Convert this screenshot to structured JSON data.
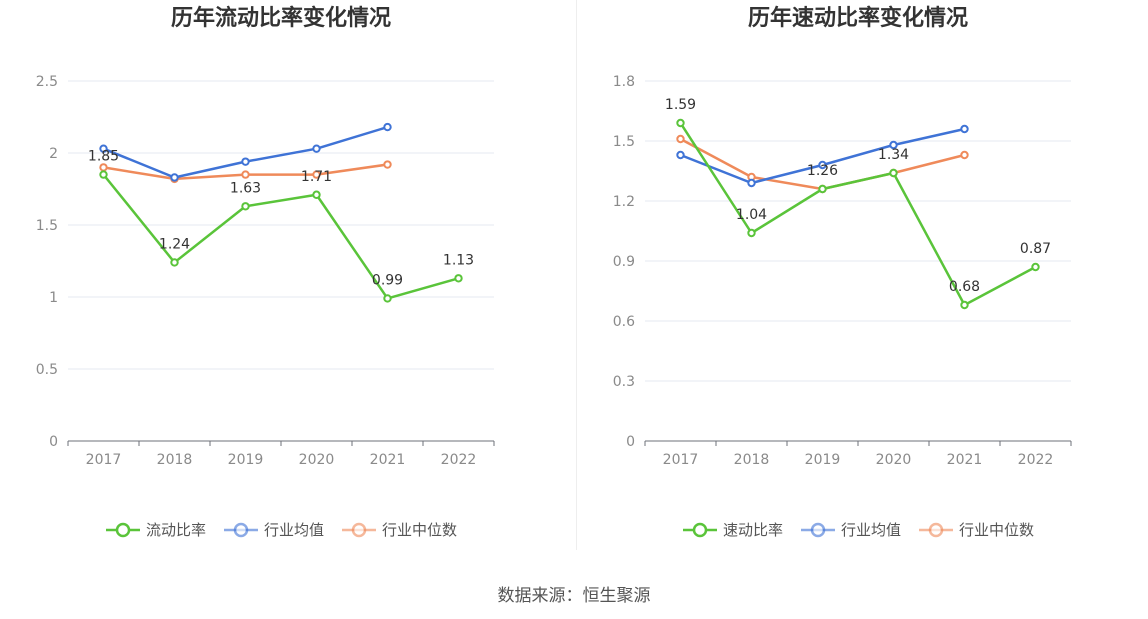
{
  "chart_data": [
    {
      "type": "line",
      "title": "历年流动比率变化情况",
      "categories": [
        "2017",
        "2018",
        "2019",
        "2020",
        "2021",
        "2022"
      ],
      "ylim": [
        0,
        2.5
      ],
      "yticks": [
        0,
        0.5,
        1,
        1.5,
        2,
        2.5
      ],
      "ytick_labels": [
        "0",
        "0.5",
        "1",
        "1.5",
        "2",
        "2.5"
      ],
      "grid": true,
      "legend_position": "bottom",
      "series": [
        {
          "name": "流动比率",
          "color": "#5ac43a",
          "values": [
            1.85,
            1.24,
            1.63,
            1.71,
            0.99,
            1.13
          ],
          "labels": [
            "1.85",
            "1.24",
            "1.63",
            "1.71",
            "0.99",
            "1.13"
          ]
        },
        {
          "name": "行业均值",
          "color": "#3f73d6",
          "values": [
            2.03,
            1.83,
            1.94,
            2.03,
            2.18,
            null
          ]
        },
        {
          "name": "行业中位数",
          "color": "#ef8a5a",
          "values": [
            1.9,
            1.82,
            1.85,
            1.85,
            1.92,
            null
          ]
        }
      ]
    },
    {
      "type": "line",
      "title": "历年速动比率变化情况",
      "categories": [
        "2017",
        "2018",
        "2019",
        "2020",
        "2021",
        "2022"
      ],
      "ylim": [
        0,
        1.8
      ],
      "yticks": [
        0,
        0.3,
        0.6,
        0.9,
        1.2,
        1.5,
        1.8
      ],
      "ytick_labels": [
        "0",
        "0.3",
        "0.6",
        "0.9",
        "1.2",
        "1.5",
        "1.8"
      ],
      "grid": true,
      "legend_position": "bottom",
      "series": [
        {
          "name": "速动比率",
          "color": "#5ac43a",
          "values": [
            1.59,
            1.04,
            1.26,
            1.34,
            0.68,
            0.87
          ],
          "labels": [
            "1.59",
            "1.04",
            "1.26",
            "1.34",
            "0.68",
            "0.87"
          ]
        },
        {
          "name": "行业均值",
          "color": "#3f73d6",
          "values": [
            1.43,
            1.29,
            1.38,
            1.48,
            1.56,
            null
          ]
        },
        {
          "name": "行业中位数",
          "color": "#ef8a5a",
          "values": [
            1.51,
            1.32,
            1.26,
            1.34,
            1.43,
            null
          ]
        }
      ]
    }
  ],
  "footer": {
    "source": "数据来源：恒生聚源"
  }
}
